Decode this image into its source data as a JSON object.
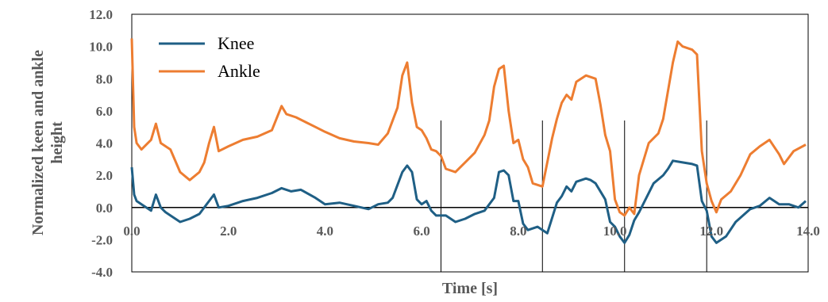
{
  "chart_data": {
    "type": "line",
    "xlabel": "Time [s]",
    "ylabel": "Normalized keen and ankle height",
    "xlim": [
      0,
      14
    ],
    "ylim": [
      -4,
      12
    ],
    "xticks": [
      "0.0",
      "2.0",
      "4.0",
      "6.0",
      "8.0",
      "10.0",
      "12.0",
      "14.0"
    ],
    "yticks": [
      "-4.0",
      "-2.0",
      "0.0",
      "2.0",
      "4.0",
      "6.0",
      "8.0",
      "10.0",
      "12.0"
    ],
    "grid": false,
    "legend": "top-left",
    "event_markers_x": [
      6.4,
      8.5,
      10.2,
      11.9
    ],
    "series": [
      {
        "name": "Knee",
        "color": "#1F5F85",
        "x": [
          0.0,
          0.05,
          0.1,
          0.2,
          0.4,
          0.5,
          0.6,
          0.7,
          0.8,
          1.0,
          1.2,
          1.4,
          1.6,
          1.7,
          1.8,
          2.0,
          2.3,
          2.6,
          2.9,
          3.1,
          3.3,
          3.5,
          3.8,
          4.0,
          4.3,
          4.6,
          4.9,
          5.1,
          5.3,
          5.4,
          5.6,
          5.7,
          5.8,
          5.9,
          6.0,
          6.1,
          6.2,
          6.3,
          6.5,
          6.7,
          6.9,
          7.1,
          7.3,
          7.5,
          7.6,
          7.7,
          7.8,
          7.9,
          8.0,
          8.1,
          8.2,
          8.4,
          8.6,
          8.8,
          8.9,
          9.0,
          9.1,
          9.2,
          9.4,
          9.5,
          9.6,
          9.8,
          9.9,
          10.0,
          10.1,
          10.2,
          10.3,
          10.4,
          10.5,
          10.6,
          10.8,
          11.0,
          11.1,
          11.2,
          11.4,
          11.6,
          11.7,
          11.8,
          11.9,
          12.0,
          12.1,
          12.3,
          12.5,
          12.8,
          13.0,
          13.2,
          13.4,
          13.6,
          13.8,
          13.95
        ],
        "y": [
          2.5,
          0.8,
          0.4,
          0.2,
          -0.2,
          0.8,
          0.0,
          -0.3,
          -0.5,
          -0.9,
          -0.7,
          -0.4,
          0.4,
          0.8,
          0.0,
          0.1,
          0.4,
          0.6,
          0.9,
          1.2,
          1.0,
          1.1,
          0.6,
          0.2,
          0.3,
          0.1,
          -0.1,
          0.2,
          0.3,
          0.6,
          2.2,
          2.6,
          2.2,
          0.5,
          0.2,
          0.4,
          -0.2,
          -0.5,
          -0.5,
          -0.9,
          -0.7,
          -0.4,
          -0.2,
          0.6,
          2.2,
          2.3,
          2.0,
          0.4,
          0.4,
          -1.0,
          -1.4,
          -1.2,
          -1.6,
          0.3,
          0.7,
          1.3,
          1.0,
          1.6,
          1.8,
          1.7,
          1.5,
          0.5,
          -0.9,
          -1.2,
          -1.8,
          -2.2,
          -1.7,
          -0.8,
          -0.3,
          0.3,
          1.5,
          2.0,
          2.4,
          2.9,
          2.8,
          2.7,
          2.6,
          0.4,
          -0.2,
          -1.8,
          -2.2,
          -1.8,
          -0.9,
          -0.1,
          0.1,
          0.6,
          0.2,
          0.2,
          0.0,
          0.4
        ]
      },
      {
        "name": "Ankle",
        "color": "#ED7D31",
        "x": [
          0.0,
          0.05,
          0.1,
          0.2,
          0.4,
          0.5,
          0.6,
          0.8,
          1.0,
          1.2,
          1.4,
          1.5,
          1.6,
          1.7,
          1.8,
          2.0,
          2.3,
          2.6,
          2.9,
          3.1,
          3.2,
          3.4,
          3.6,
          3.8,
          4.0,
          4.3,
          4.6,
          4.9,
          5.1,
          5.3,
          5.5,
          5.6,
          5.7,
          5.8,
          5.9,
          6.0,
          6.1,
          6.2,
          6.3,
          6.4,
          6.5,
          6.7,
          6.9,
          7.1,
          7.3,
          7.4,
          7.5,
          7.6,
          7.7,
          7.8,
          7.9,
          8.0,
          8.1,
          8.2,
          8.3,
          8.4,
          8.5,
          8.7,
          8.8,
          8.9,
          9.0,
          9.1,
          9.2,
          9.4,
          9.6,
          9.7,
          9.8,
          9.9,
          10.0,
          10.1,
          10.2,
          10.3,
          10.4,
          10.5,
          10.7,
          10.9,
          11.0,
          11.2,
          11.3,
          11.4,
          11.6,
          11.7,
          11.8,
          11.9,
          12.0,
          12.1,
          12.2,
          12.4,
          12.6,
          12.8,
          13.0,
          13.2,
          13.4,
          13.5,
          13.7,
          13.95
        ],
        "y": [
          10.5,
          5.0,
          4.0,
          3.6,
          4.2,
          5.2,
          4.0,
          3.6,
          2.2,
          1.7,
          2.2,
          2.8,
          4.0,
          5.0,
          3.5,
          3.8,
          4.2,
          4.4,
          4.8,
          6.3,
          5.8,
          5.6,
          5.3,
          5.0,
          4.7,
          4.3,
          4.1,
          4.0,
          3.9,
          4.6,
          6.2,
          8.2,
          9.0,
          6.5,
          5.0,
          4.8,
          4.3,
          3.6,
          3.5,
          3.2,
          2.4,
          2.2,
          2.8,
          3.4,
          4.5,
          5.4,
          7.5,
          8.6,
          8.8,
          6.0,
          4.0,
          4.2,
          3.0,
          2.5,
          1.5,
          1.4,
          1.3,
          4.3,
          5.5,
          6.5,
          7.0,
          6.7,
          7.8,
          8.2,
          8.0,
          6.4,
          4.5,
          3.5,
          0.5,
          -0.3,
          -0.5,
          0.0,
          -0.4,
          2.0,
          4.0,
          4.6,
          5.5,
          9.0,
          10.3,
          10.0,
          9.8,
          9.5,
          3.5,
          1.5,
          0.4,
          -0.3,
          0.5,
          1.0,
          2.0,
          3.3,
          3.8,
          4.2,
          3.3,
          2.7,
          3.5,
          3.9
        ]
      }
    ]
  }
}
